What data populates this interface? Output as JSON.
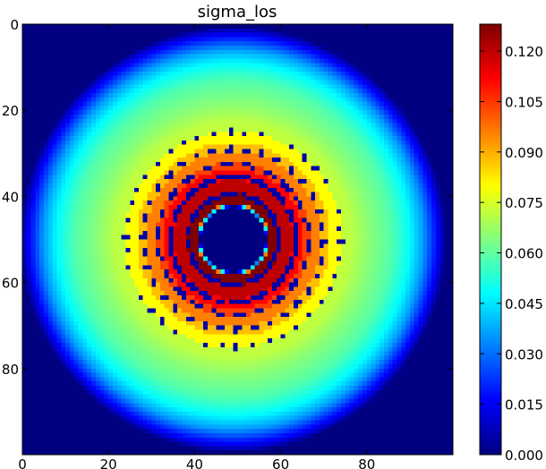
{
  "chart_data": [
    {
      "type": "heatmap",
      "title": "sigma_los",
      "xlabel": "",
      "ylabel": "",
      "grid": false,
      "colormap": "jet",
      "image_size": [
        100,
        100
      ],
      "xlim": [
        0,
        100
      ],
      "ylim": [
        100,
        0
      ],
      "x_ticks": [
        0,
        20,
        40,
        60,
        80
      ],
      "y_ticks": [
        0,
        20,
        40,
        60,
        80
      ],
      "x_tick_labels": [
        "0",
        "20",
        "40",
        "60",
        "80"
      ],
      "y_tick_labels": [
        "0",
        "20",
        "40",
        "60",
        "80"
      ],
      "center": [
        49,
        50
      ],
      "value_range": [
        0.0,
        0.128
      ],
      "description_profile": [
        {
          "r": 0,
          "value": 0.0
        },
        {
          "r": 7.5,
          "value": 0.0
        },
        {
          "r": 8.5,
          "value": 0.128
        },
        {
          "r": 11,
          "value": 0.124
        },
        {
          "r": 13,
          "value": 0.118
        },
        {
          "r": 16,
          "value": 0.11
        },
        {
          "r": 18,
          "value": 0.1
        },
        {
          "r": 21,
          "value": 0.09
        },
        {
          "r": 23,
          "value": 0.082
        },
        {
          "r": 26,
          "value": 0.074
        },
        {
          "r": 31,
          "value": 0.066
        },
        {
          "r": 37,
          "value": 0.058
        },
        {
          "r": 41,
          "value": 0.048
        },
        {
          "r": 44,
          "value": 0.036
        },
        {
          "r": 46,
          "value": 0.024
        },
        {
          "r": 48,
          "value": 0.012
        },
        {
          "r": 49.5,
          "value": 0.0
        }
      ],
      "dotted_rings": [
        {
          "r": 10.5,
          "value": 0.005,
          "kind": "solid"
        },
        {
          "r": 14.5,
          "value": 0.005,
          "kind": "solid"
        },
        {
          "r": 17.5,
          "value": 0.005,
          "kind": "dashed"
        },
        {
          "r": 21,
          "value": 0.005,
          "kind": "dotted"
        },
        {
          "r": 25,
          "value": 0.005,
          "kind": "sparse"
        }
      ]
    },
    {
      "type": "colorbar",
      "vmin": 0.0,
      "vmax": 0.128,
      "ticks": [
        0.0,
        0.015,
        0.03,
        0.045,
        0.06,
        0.075,
        0.09,
        0.105,
        0.12
      ],
      "tick_labels": [
        "0.000",
        "0.015",
        "0.030",
        "0.045",
        "0.060",
        "0.075",
        "0.090",
        "0.105",
        "0.120"
      ]
    }
  ]
}
